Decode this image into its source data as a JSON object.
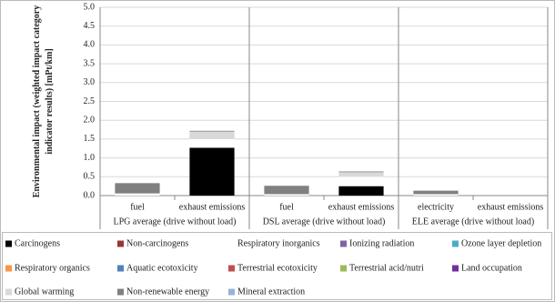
{
  "chart_data": {
    "type": "stacked-bar",
    "ylabel": [
      "Environmental impact (weighted impact category",
      "indicator results) [mPt/km]"
    ],
    "categories": [
      "fuel",
      "exhaust emissions",
      "fuel",
      "exhaust emissions",
      "electricity",
      "exhaust emissions"
    ],
    "groups": [
      "LPG average (drive without load)",
      "DSL average (drive without load)",
      "ELE average (drive without load)"
    ],
    "ylim": [
      0,
      5
    ],
    "yticks": [
      {
        "value": 0,
        "label": "0.0"
      },
      0.5,
      {
        "value": 1,
        "label": "1.0"
      },
      1.5,
      {
        "value": 2,
        "label": "2.0"
      },
      2.5,
      {
        "value": 3,
        "label": "3.0"
      },
      3.5,
      {
        "value": 4,
        "label": "4.0"
      },
      4.5,
      {
        "value": 5,
        "label": "5.0"
      }
    ],
    "grid": true,
    "legend": "bottom",
    "series": [
      {
        "name": "Carcinogens",
        "color": "#000000",
        "values": [
          0,
          1.27,
          0,
          0.25,
          0,
          0
        ]
      },
      {
        "name": "Non-carcinogens",
        "color": "#953735",
        "values": [
          0,
          0,
          0,
          0,
          0,
          0
        ]
      },
      {
        "name": "Respiratory inorganics",
        "color": "#ffffff",
        "values": [
          0.05,
          0.23,
          0.03,
          0.25,
          0.03,
          0
        ]
      },
      {
        "name": "Ionizing radiation",
        "color": "#8064a2",
        "values": [
          0,
          0,
          0,
          0,
          0,
          0
        ]
      },
      {
        "name": "Ozone layer depletion",
        "color": "#4bacc6",
        "values": [
          0,
          0,
          0,
          0,
          0,
          0
        ]
      },
      {
        "name": "Respiratory organics",
        "color": "#f79646",
        "values": [
          0,
          0,
          0,
          0,
          0,
          0
        ]
      },
      {
        "name": "Aquatic ecotoxicity",
        "color": "#4f81bd",
        "values": [
          0,
          0,
          0,
          0,
          0,
          0
        ]
      },
      {
        "name": "Terrestrial ecotoxicity",
        "color": "#c0504d",
        "values": [
          0,
          0,
          0,
          0,
          0,
          0
        ]
      },
      {
        "name": "Terrestrial acid/nutri",
        "color": "#9bbb59",
        "values": [
          0,
          0,
          0,
          0,
          0,
          0
        ]
      },
      {
        "name": "Land occupation",
        "color": "#7030a0",
        "values": [
          0,
          0,
          0,
          0,
          0,
          0
        ]
      },
      {
        "name": "Global warming",
        "color": "#d9d9d9",
        "values": [
          0.01,
          0.2,
          0.01,
          0.12,
          0.01,
          0
        ]
      },
      {
        "name": "Non-renewable energy",
        "color": "#808080",
        "values": [
          0.27,
          0.02,
          0.22,
          0.02,
          0.09,
          0
        ]
      },
      {
        "name": "Mineral extraction",
        "color": "#95b3d7",
        "values": [
          0,
          0,
          0,
          0,
          0,
          0
        ]
      }
    ]
  }
}
